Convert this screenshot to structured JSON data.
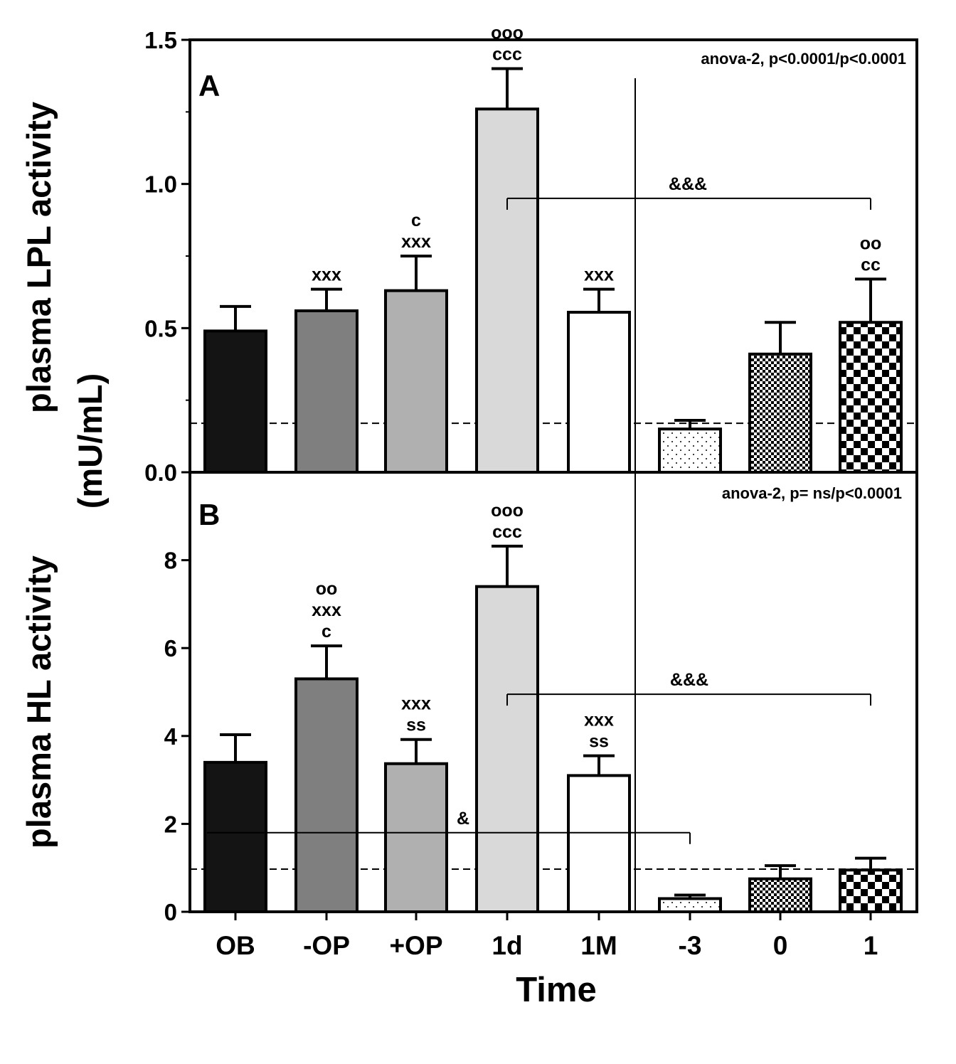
{
  "chart_data": [
    {
      "panel": "A",
      "type": "bar",
      "ylabel": [
        "plasma LPL activity",
        "(mU/mL)"
      ],
      "xlabel": "Time",
      "ylim": [
        0,
        1.5
      ],
      "yticks": [
        "0.0",
        "0.5",
        "1.0",
        "1.5"
      ],
      "categories": [
        "OB",
        "-OP",
        "+OP",
        "1d",
        "1M",
        "-3",
        "0",
        "1"
      ],
      "values": [
        0.49,
        0.56,
        0.63,
        1.26,
        0.555,
        0.15,
        0.41,
        0.52
      ],
      "errors": [
        0.085,
        0.075,
        0.12,
        0.14,
        0.08,
        0.03,
        0.11,
        0.15
      ],
      "annotations": [
        "",
        "xxx",
        "c|xxx",
        "ooo|ccc",
        "xxx",
        "",
        "",
        "oo|cc"
      ],
      "reference_line": 0.17,
      "stats": "anova-2, p<0.0001/p<0.0001",
      "brackets": [
        {
          "from": 3,
          "to": 7,
          "y": 0.95,
          "label": "&&&"
        }
      ]
    },
    {
      "panel": "B",
      "type": "bar",
      "ylabel": [
        "plasma HL activity"
      ],
      "xlabel": "Time",
      "ylim": [
        0,
        10
      ],
      "yticks": [
        "0",
        "2",
        "4",
        "6",
        "8"
      ],
      "categories": [
        "OB",
        "-OP",
        "+OP",
        "1d",
        "1M",
        "-3",
        "0",
        "1"
      ],
      "values": [
        3.4,
        5.3,
        3.37,
        7.4,
        3.1,
        0.3,
        0.75,
        0.95
      ],
      "errors": [
        0.63,
        0.75,
        0.55,
        0.92,
        0.45,
        0.08,
        0.3,
        0.27
      ],
      "annotations": [
        "",
        "oo|xxx|c",
        "xxx|ss",
        "ooo|ccc",
        "xxx|ss",
        "",
        "",
        ""
      ],
      "reference_line": 0.97,
      "stats": "anova-2, p= ns/p<0.0001",
      "brackets": [
        {
          "from": 3,
          "to": 7,
          "y": 4.95,
          "label": "&&&"
        },
        {
          "from": 0,
          "to": 5,
          "y": 1.8,
          "label": "&"
        }
      ]
    }
  ],
  "colors": {
    "OB": "#141414",
    "-OP": "#7f7f7f",
    "+OP": "#b0b0b0",
    "1d": "#d9d9d9",
    "1M": "#ffffff",
    "-3": "dots",
    "0": "fine-checker",
    "1": "coarse-checker"
  }
}
